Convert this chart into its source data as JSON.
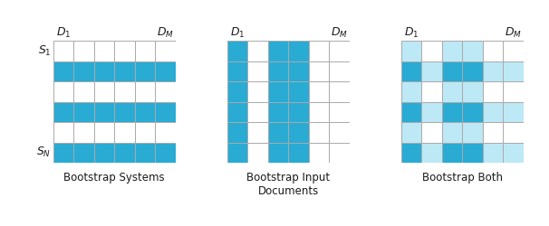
{
  "title1": "Bootstrap Systems",
  "title2": "Bootstrap Input\nDocuments",
  "title3": "Bootstrap Both",
  "rows": 6,
  "cols": 6,
  "blue_color": "#29ABD4",
  "light_blue_color": "#BDE8F5",
  "white_color": "#FFFFFF",
  "grid_color": "#AAAAAA",
  "label_color": "#1a1a1a",
  "D1_label": "$D_1$",
  "DM_label": "$D_M$",
  "S1_label": "$S_1$",
  "SN_label": "$S_N$",
  "selected_rows_sys": [
    1,
    3,
    5
  ],
  "selected_cols_docs": [
    0,
    2,
    3
  ],
  "figsize": [
    6.06,
    2.5
  ],
  "dpi": 100
}
